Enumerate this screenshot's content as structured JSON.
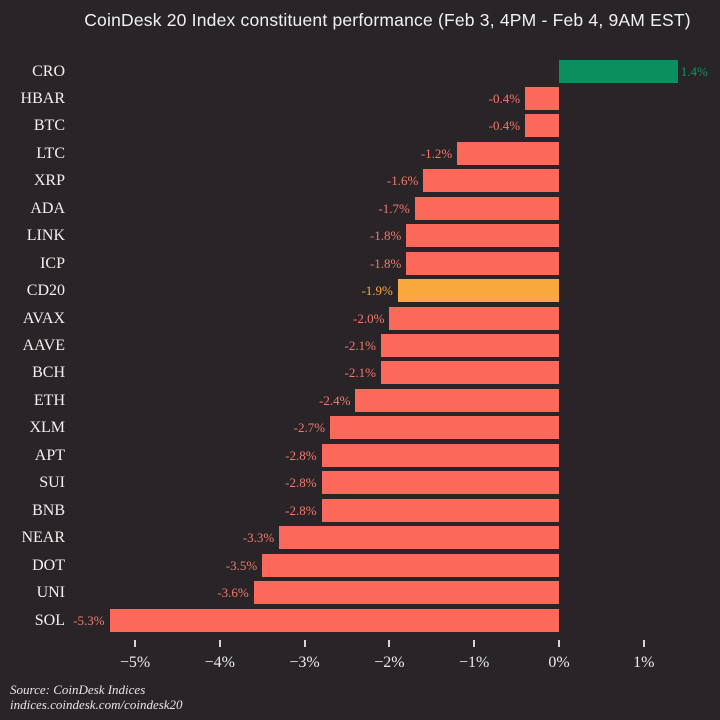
{
  "title": "CoinDesk 20 Index constituent performance (Feb 3, 4PM - Feb 4, 9AM EST)",
  "footer": {
    "source": "Source: CoinDesk Indices",
    "url": "indices.coindesk.com/coindesk20"
  },
  "colors": {
    "background": "#292428",
    "bar_negative": "#fc695b",
    "bar_positive": "#0a8f5e",
    "bar_index": "#f9a83e",
    "value_negative": "#f4796a",
    "value_positive": "#13935e",
    "value_index": "#f9a83e",
    "ticker_label": "#f3f0ee",
    "axis_label": "#eceae8"
  },
  "chart_data": {
    "type": "bar",
    "orientation": "horizontal",
    "title": "CoinDesk 20 Index constituent performance (Feb 3, 4PM - Feb 4, 9AM EST)",
    "xlabel": "",
    "ylabel": "",
    "xlim": [
      -5.5,
      1.5
    ],
    "grid": false,
    "legend": false,
    "categories": [
      "CRO",
      "HBAR",
      "BTC",
      "LTC",
      "XRP",
      "ADA",
      "LINK",
      "ICP",
      "CD20",
      "AVAX",
      "AAVE",
      "BCH",
      "ETH",
      "XLM",
      "APT",
      "SUI",
      "BNB",
      "NEAR",
      "DOT",
      "UNI",
      "SOL"
    ],
    "values": [
      1.4,
      -0.4,
      -0.4,
      -1.2,
      -1.6,
      -1.7,
      -1.8,
      -1.8,
      -1.9,
      -2.0,
      -2.1,
      -2.1,
      -2.4,
      -2.7,
      -2.8,
      -2.8,
      -2.8,
      -3.3,
      -3.5,
      -3.6,
      -5.3
    ],
    "value_labels": [
      "1.4%",
      "-0.4%",
      "-0.4%",
      "-1.2%",
      "-1.6%",
      "-1.7%",
      "-1.8%",
      "-1.8%",
      "-1.9%",
      "-2.0%",
      "-2.1%",
      "-2.1%",
      "-2.4%",
      "-2.7%",
      "-2.8%",
      "-2.8%",
      "-2.8%",
      "-3.3%",
      "-3.5%",
      "-3.6%",
      "-5.3%"
    ],
    "row_roles": [
      "positive",
      "negative",
      "negative",
      "negative",
      "negative",
      "negative",
      "negative",
      "negative",
      "index",
      "negative",
      "negative",
      "negative",
      "negative",
      "negative",
      "negative",
      "negative",
      "negative",
      "negative",
      "negative",
      "negative",
      "negative"
    ],
    "highlighted_row": "CD20",
    "x_ticks": [
      {
        "value": -5,
        "label": "−5%"
      },
      {
        "value": -4,
        "label": "−4%"
      },
      {
        "value": -3,
        "label": "−3%"
      },
      {
        "value": -2,
        "label": "−2%"
      },
      {
        "value": -1,
        "label": "−1%"
      },
      {
        "value": 0,
        "label": "0%"
      },
      {
        "value": 1,
        "label": "1%"
      }
    ]
  }
}
